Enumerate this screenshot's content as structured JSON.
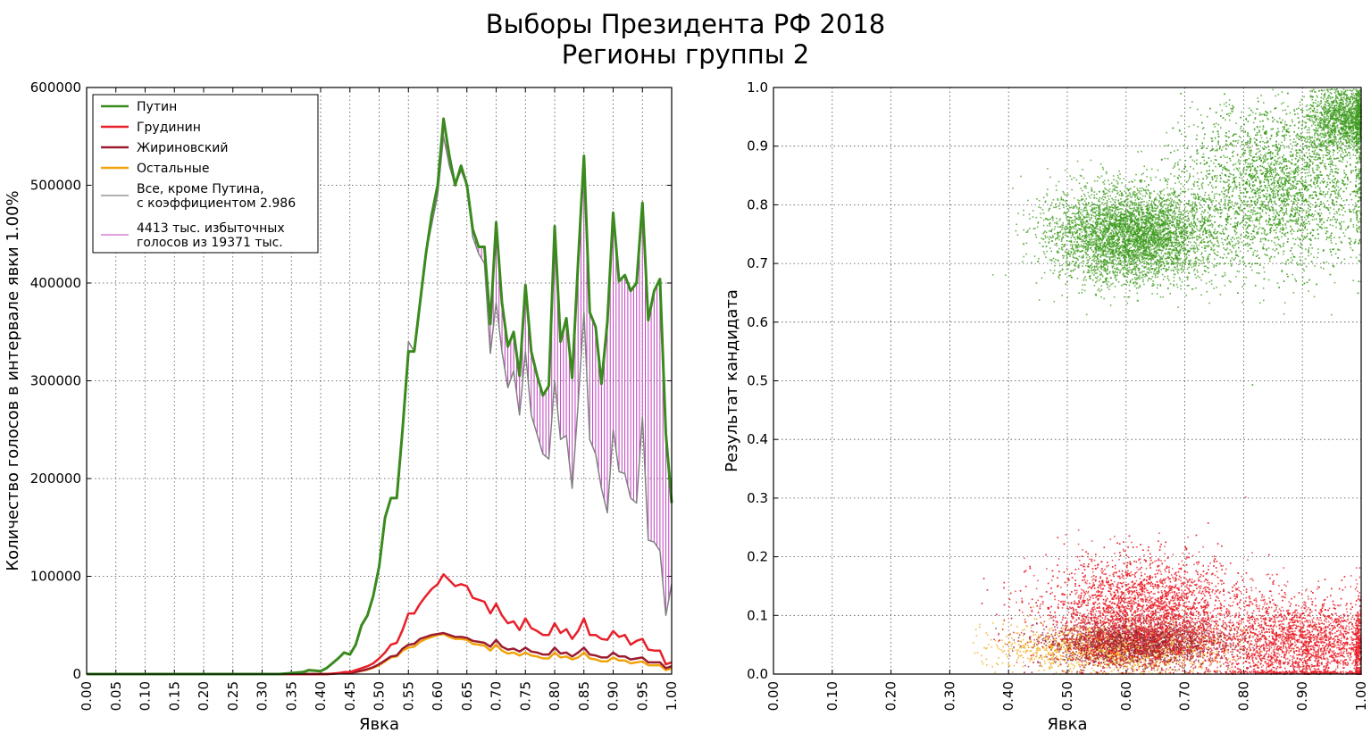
{
  "title": "Выборы Президента РФ 2018",
  "subtitle": "Регионы группы 2",
  "colors": {
    "putin": "#3a8a1e",
    "grudinin": "#e8202a",
    "zhirinovsky": "#9b1b30",
    "others": "#f0a30a",
    "scaled": "#808080",
    "excess": "#c040c0",
    "scatter_putin": "#3a9a1a"
  },
  "chart_data": [
    {
      "type": "line",
      "xlabel": "Явка",
      "ylabel": "Количество голосов в интервале явки 1.00%",
      "xlim": [
        0,
        1
      ],
      "ylim": [
        0,
        600000
      ],
      "grid": true,
      "legend_position": "top-left",
      "x_ticks": [
        "0.00",
        "0.05",
        "0.10",
        "0.15",
        "0.20",
        "0.25",
        "0.30",
        "0.35",
        "0.40",
        "0.45",
        "0.50",
        "0.55",
        "0.60",
        "0.65",
        "0.70",
        "0.75",
        "0.80",
        "0.85",
        "0.90",
        "0.95",
        "1.00"
      ],
      "y_ticks": [
        "0",
        "100000",
        "200000",
        "300000",
        "400000",
        "500000",
        "600000"
      ],
      "x": [
        0.0,
        0.33,
        0.35,
        0.37,
        0.38,
        0.4,
        0.41,
        0.42,
        0.43,
        0.44,
        0.45,
        0.46,
        0.47,
        0.48,
        0.49,
        0.5,
        0.51,
        0.52,
        0.53,
        0.54,
        0.55,
        0.56,
        0.57,
        0.58,
        0.59,
        0.6,
        0.61,
        0.62,
        0.63,
        0.64,
        0.65,
        0.66,
        0.67,
        0.68,
        0.69,
        0.7,
        0.71,
        0.72,
        0.73,
        0.74,
        0.75,
        0.76,
        0.77,
        0.78,
        0.79,
        0.8,
        0.81,
        0.82,
        0.83,
        0.84,
        0.85,
        0.86,
        0.87,
        0.88,
        0.89,
        0.9,
        0.91,
        0.92,
        0.93,
        0.94,
        0.95,
        0.96,
        0.97,
        0.98,
        0.99,
        1.0
      ],
      "series": [
        {
          "name": "Путин",
          "key": "putin",
          "width": 3,
          "values": [
            0,
            0,
            1000,
            2000,
            4000,
            3000,
            6000,
            11000,
            16000,
            22000,
            20000,
            30000,
            50000,
            60000,
            80000,
            110000,
            160000,
            180000,
            180000,
            250000,
            330000,
            330000,
            380000,
            430000,
            470000,
            500000,
            568000,
            530000,
            500000,
            520000,
            500000,
            455000,
            437000,
            437000,
            358000,
            462000,
            380000,
            335000,
            350000,
            305000,
            398000,
            330000,
            305000,
            285000,
            295000,
            458000,
            340000,
            364000,
            303000,
            420000,
            530000,
            370000,
            355000,
            297000,
            360000,
            472000,
            402000,
            408000,
            392000,
            400000,
            482000,
            362000,
            392000,
            404000,
            246000,
            175000
          ]
        },
        {
          "name": "Грудинин",
          "key": "grudinin",
          "width": 2.5,
          "values": [
            0,
            0,
            0,
            0,
            0,
            0,
            0,
            500,
            1000,
            2000,
            2000,
            4000,
            6000,
            8000,
            11000,
            16000,
            22000,
            30000,
            32000,
            45000,
            62000,
            62000,
            72000,
            80000,
            87000,
            92000,
            102000,
            96000,
            90000,
            92000,
            90000,
            78000,
            76000,
            74000,
            62000,
            72000,
            60000,
            52000,
            54000,
            45000,
            57000,
            47000,
            44000,
            40000,
            40000,
            52000,
            42000,
            46000,
            36000,
            44000,
            57000,
            40000,
            40000,
            36000,
            35000,
            44000,
            38000,
            40000,
            30000,
            34000,
            36000,
            25000,
            24000,
            24000,
            10000,
            12000
          ]
        },
        {
          "name": "Жириновский",
          "key": "zhirinovsky",
          "width": 2.5,
          "values": [
            0,
            0,
            0,
            0,
            0,
            0,
            0,
            300,
            600,
            1200,
            1200,
            2200,
            3500,
            5000,
            7000,
            10000,
            14000,
            18000,
            19000,
            26000,
            30000,
            31000,
            36000,
            38000,
            40000,
            41000,
            42000,
            40000,
            38000,
            38000,
            37000,
            34000,
            33000,
            32000,
            28000,
            35000,
            28000,
            25000,
            26000,
            23000,
            27000,
            23000,
            22000,
            20000,
            20000,
            27000,
            21000,
            22000,
            18000,
            22000,
            27000,
            20000,
            19000,
            17000,
            17000,
            22000,
            18000,
            18000,
            15000,
            16000,
            17000,
            12000,
            12000,
            12000,
            6000,
            8000
          ]
        },
        {
          "name": "Остальные",
          "key": "others",
          "width": 2.5,
          "values": [
            0,
            0,
            0,
            0,
            0,
            0,
            0,
            300,
            600,
            1200,
            1200,
            2000,
            3200,
            4500,
            6500,
            9000,
            13000,
            17000,
            18000,
            24000,
            27000,
            28000,
            33000,
            36000,
            38000,
            40000,
            41000,
            38000,
            36000,
            36000,
            35000,
            31000,
            30000,
            29000,
            24000,
            30000,
            24000,
            21000,
            22000,
            19000,
            22000,
            19000,
            18000,
            16000,
            16000,
            22000,
            17000,
            18000,
            15000,
            17000,
            22000,
            16000,
            15000,
            13000,
            13000,
            17000,
            14000,
            14000,
            11000,
            12000,
            13000,
            9000,
            9000,
            9000,
            4000,
            6000
          ]
        },
        {
          "name": "Все, кроме Путина,\nс коэффициентом 2.986",
          "key": "scaled",
          "width": 1.5,
          "values": [
            0,
            0,
            1000,
            2000,
            4000,
            3000,
            6000,
            11000,
            16000,
            22000,
            20000,
            30000,
            50000,
            60000,
            80000,
            110000,
            160000,
            180000,
            180000,
            250000,
            340000,
            330000,
            380000,
            430000,
            460000,
            490000,
            550000,
            520000,
            500000,
            515000,
            500000,
            447000,
            430000,
            420000,
            328000,
            380000,
            330000,
            293000,
            310000,
            265000,
            330000,
            265000,
            245000,
            225000,
            220000,
            300000,
            240000,
            244000,
            190000,
            275000,
            370000,
            240000,
            225000,
            190000,
            165000,
            250000,
            207000,
            205000,
            180000,
            175000,
            263000,
            137000,
            135000,
            126000,
            60000,
            92000
          ]
        }
      ],
      "legend": [
        {
          "label": "Путин",
          "key": "putin"
        },
        {
          "label": "Грудинин",
          "key": "grudinin"
        },
        {
          "label": "Жириновский",
          "key": "zhirinovsky"
        },
        {
          "label": "Остальные",
          "key": "others"
        },
        {
          "label": "Все, кроме Путина,\nс коэффициентом 2.986",
          "key": "scaled"
        },
        {
          "label": "4413 тыс. избыточных\nголосов из 19371 тыс.",
          "key": "excess"
        }
      ]
    },
    {
      "type": "scatter",
      "xlabel": "Явка",
      "ylabel": "Результат кандидата",
      "xlim": [
        0,
        1
      ],
      "ylim": [
        0,
        1
      ],
      "grid": true,
      "x_ticks": [
        "0.00",
        "0.10",
        "0.20",
        "0.30",
        "0.40",
        "0.50",
        "0.60",
        "0.70",
        "0.80",
        "0.90",
        "1.00"
      ],
      "y_ticks": [
        "0.0",
        "0.1",
        "0.2",
        "0.3",
        "0.4",
        "0.5",
        "0.6",
        "0.7",
        "0.8",
        "0.9",
        "1.0"
      ],
      "clusters": [
        {
          "name": "Путин",
          "key": "scatter_putin",
          "center": [
            0.61,
            0.75
          ],
          "spread": [
            0.07,
            0.04
          ],
          "count": 4500
        },
        {
          "name": "Путин",
          "key": "scatter_putin",
          "center": [
            0.86,
            0.83
          ],
          "spread": [
            0.08,
            0.07
          ],
          "count": 3500
        },
        {
          "name": "Путин",
          "key": "scatter_putin",
          "center": [
            0.97,
            0.95
          ],
          "spread": [
            0.03,
            0.03
          ],
          "count": 1500
        },
        {
          "name": "Грудинин",
          "key": "grudinin",
          "center": [
            0.63,
            0.11
          ],
          "spread": [
            0.09,
            0.045
          ],
          "count": 4000
        },
        {
          "name": "Грудинин",
          "key": "grudinin",
          "center": [
            0.9,
            0.05
          ],
          "spread": [
            0.08,
            0.04
          ],
          "count": 3500
        },
        {
          "name": "Жириновский",
          "key": "zhirinovsky",
          "center": [
            0.62,
            0.055
          ],
          "spread": [
            0.08,
            0.02
          ],
          "count": 2500
        },
        {
          "name": "Остальные",
          "key": "others",
          "center": [
            0.58,
            0.045
          ],
          "spread": [
            0.09,
            0.02
          ],
          "count": 1800
        }
      ]
    }
  ]
}
